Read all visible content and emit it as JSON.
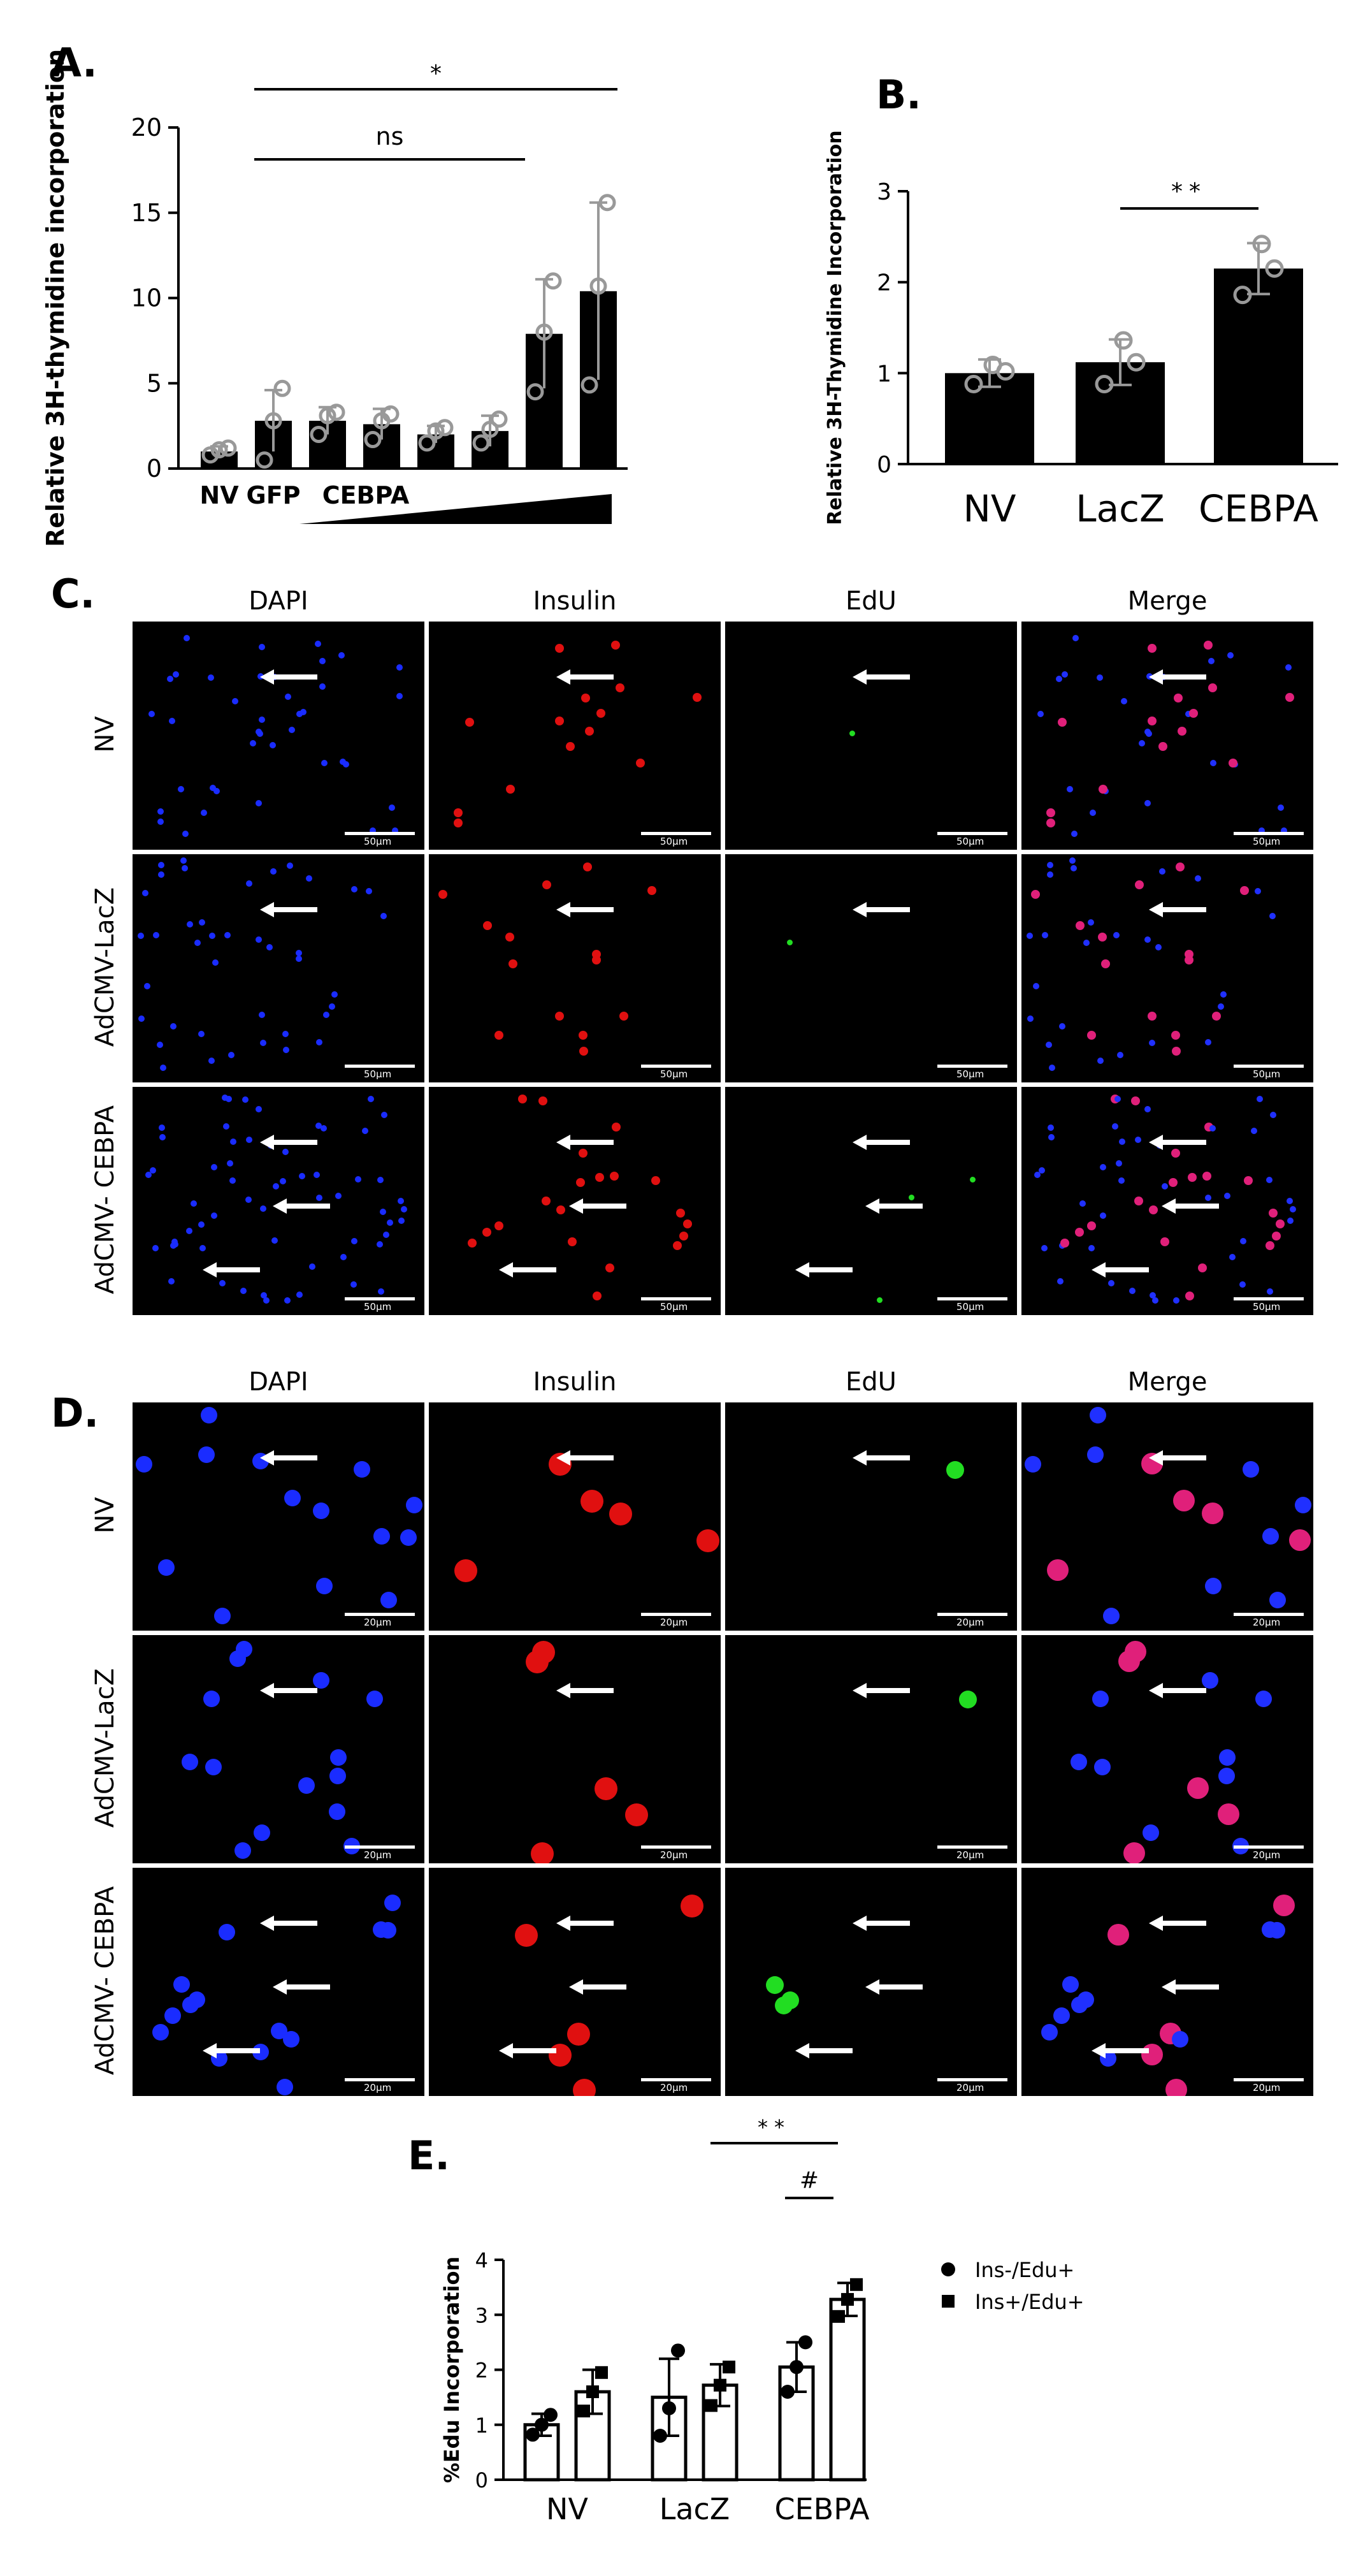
{
  "panels": {
    "A": "A.",
    "B": "B.",
    "C": "C.",
    "D": "D.",
    "E": "E."
  },
  "chart_data": [
    {
      "panel": "A",
      "type": "bar",
      "categories": [
        "NV",
        "GFP",
        "CEBPA",
        "",
        "",
        "",
        "",
        ""
      ],
      "values": [
        1.0,
        2.8,
        2.8,
        2.6,
        2.0,
        2.2,
        7.9,
        10.4
      ],
      "errors": [
        0.3,
        1.8,
        0.8,
        0.9,
        0.5,
        0.9,
        3.2,
        5.2
      ],
      "points": [
        [
          0.8,
          1.1,
          1.2
        ],
        [
          0.5,
          2.8,
          4.7
        ],
        [
          2.0,
          3.1,
          3.3
        ],
        [
          1.7,
          2.8,
          3.2
        ],
        [
          1.5,
          2.2,
          2.4
        ],
        [
          1.5,
          2.3,
          2.9
        ],
        [
          4.5,
          8.0,
          11.0
        ],
        [
          4.9,
          10.7,
          15.6
        ]
      ],
      "ylabel": "Relative 3H-thymidine incorporation",
      "ylim": [
        0,
        20
      ],
      "yticks": [
        "0",
        "5",
        "10",
        "15",
        "20"
      ],
      "annotations": [
        {
          "label": "*",
          "from": "GFP",
          "to": "last"
        },
        {
          "label": "ns",
          "from": "GFP",
          "to": "7th"
        }
      ],
      "gradient_label": "CEBPA"
    },
    {
      "panel": "B",
      "type": "bar",
      "categories": [
        "NV",
        "LacZ",
        "CEBPA"
      ],
      "values": [
        1.0,
        1.12,
        2.15
      ],
      "errors": [
        0.15,
        0.25,
        0.28
      ],
      "points": [
        [
          0.88,
          1.02,
          1.09
        ],
        [
          0.88,
          1.12,
          1.36
        ],
        [
          1.86,
          2.15,
          2.42
        ]
      ],
      "ylabel": "Relative 3H-Thymidine Incorporation",
      "ylim": [
        0,
        3
      ],
      "yticks": [
        "0",
        "1",
        "2",
        "3"
      ],
      "annotations": [
        {
          "label": "**",
          "from": "LacZ",
          "to": "CEBPA"
        }
      ]
    },
    {
      "panel": "E",
      "type": "bar",
      "categories": [
        "NV",
        "LacZ",
        "CEBPA"
      ],
      "series": [
        {
          "name": "Ins-/Edu+",
          "values": [
            1.0,
            1.5,
            2.05
          ],
          "errors": [
            0.2,
            0.7,
            0.45
          ],
          "points": [
            [
              0.82,
              1.0,
              1.18
            ],
            [
              0.8,
              1.3,
              2.35
            ],
            [
              1.6,
              2.05,
              2.5
            ]
          ]
        },
        {
          "name": "Ins+/Edu+",
          "values": [
            1.6,
            1.72,
            3.28
          ],
          "errors": [
            0.4,
            0.38,
            0.3
          ],
          "points": [
            [
              1.25,
              1.6,
              1.95
            ],
            [
              1.35,
              1.72,
              2.05
            ],
            [
              2.97,
              3.28,
              3.55
            ]
          ]
        }
      ],
      "ylabel": "%Edu Incorporation",
      "ylim": [
        0,
        4
      ],
      "yticks": [
        "0",
        "1",
        "2",
        "3",
        "4"
      ],
      "annotations": [
        {
          "label": "**",
          "from": "LacZ",
          "to": "CEBPA"
        },
        {
          "label": "#",
          "from": "CEBPA-1",
          "to": "CEBPA-2"
        }
      ]
    }
  ],
  "micrographs": {
    "columns": [
      "DAPI",
      "Insulin",
      "EdU",
      "Merge"
    ],
    "rows": [
      "NV",
      "AdCMV-LacZ",
      "AdCMV- CEBPA"
    ],
    "scale_C": "50μm",
    "scale_D": "20μm"
  }
}
